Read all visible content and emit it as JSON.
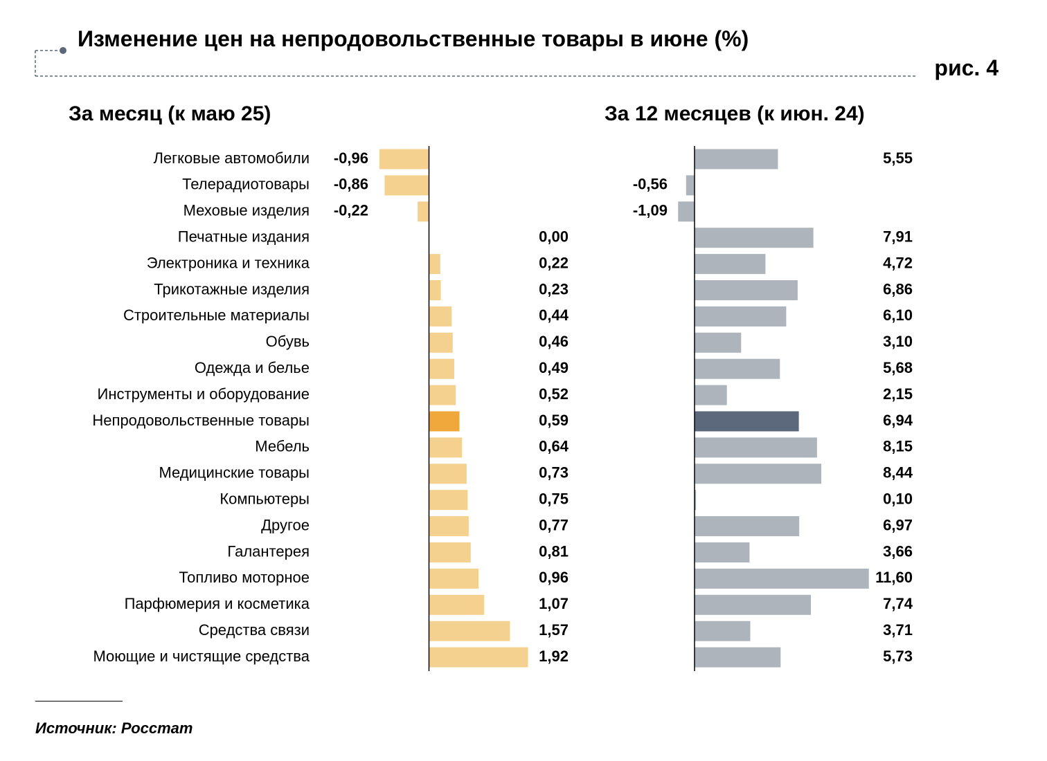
{
  "header": {
    "title": "Изменение цен на непродовольственные товары в июне (%)",
    "figure_number": "рис. 4"
  },
  "footer": {
    "source": "Источник: Росстат"
  },
  "colors": {
    "month_bar": "#f5d18f",
    "month_bar_highlight": "#f0a83c",
    "year_bar": "#adb4bc",
    "year_bar_highlight": "#5c687b",
    "axis": "#000000",
    "decoration": "#5c6878"
  },
  "chart_data": [
    {
      "type": "bar",
      "orientation": "horizontal",
      "title": "За месяц (к маю 25)",
      "categories": [
        "Легковые автомобили",
        "Телерадиотовары",
        "Меховые изделия",
        "Печатные издания",
        "Электроника и техника",
        "Трикотажные изделия",
        "Строительные материалы",
        "Обувь",
        "Одежда и белье",
        "Инструменты и оборудование",
        "Непродовольственные товары",
        "Мебель",
        "Медицинские товары",
        "Компьютеры",
        "Другое",
        "Галантерея",
        "Топливо моторное",
        "Парфюмерия и косметика",
        "Средства связи",
        "Моющие и чистящие средства"
      ],
      "values": [
        -0.96,
        -0.86,
        -0.22,
        0.0,
        0.22,
        0.23,
        0.44,
        0.46,
        0.49,
        0.52,
        0.59,
        0.64,
        0.73,
        0.75,
        0.77,
        0.81,
        0.96,
        1.07,
        1.57,
        1.92
      ],
      "value_labels": [
        "-0,96",
        "-0,86",
        "-0,22",
        "0,00",
        "0,22",
        "0,23",
        "0,44",
        "0,46",
        "0,49",
        "0,52",
        "0,59",
        "0,64",
        "0,73",
        "0,75",
        "0,77",
        "0,81",
        "0,96",
        "1,07",
        "1,57",
        "1,92"
      ],
      "highlight_category": "Непродовольственные товары",
      "xlim": [
        -0.96,
        1.92
      ],
      "grid": false,
      "legend": "none"
    },
    {
      "type": "bar",
      "orientation": "horizontal",
      "title": "За 12 месяцев (к июн. 24)",
      "categories": [
        "Легковые автомобили",
        "Телерадиотовары",
        "Меховые изделия",
        "Печатные издания",
        "Электроника и техника",
        "Трикотажные изделия",
        "Строительные материалы",
        "Обувь",
        "Одежда и белье",
        "Инструменты и оборудование",
        "Непродовольственные товары",
        "Мебель",
        "Медицинские товары",
        "Компьютеры",
        "Другое",
        "Галантерея",
        "Топливо моторное",
        "Парфюмерия и косметика",
        "Средства связи",
        "Моющие и чистящие средства"
      ],
      "values": [
        5.55,
        -0.56,
        -1.09,
        7.91,
        4.72,
        6.86,
        6.1,
        3.1,
        5.68,
        2.15,
        6.94,
        8.15,
        8.44,
        0.1,
        6.97,
        3.66,
        11.6,
        7.74,
        3.71,
        5.73
      ],
      "value_labels": [
        "5,55",
        "-0,56",
        "-1,09",
        "7,91",
        "4,72",
        "6,86",
        "6,10",
        "3,10",
        "5,68",
        "2,15",
        "6,94",
        "8,15",
        "8,44",
        "0,10",
        "6,97",
        "3,66",
        "11,60",
        "7,74",
        "3,71",
        "5,73"
      ],
      "highlight_category": "Непродовольственные товары",
      "xlim": [
        -1.09,
        11.6
      ],
      "grid": false,
      "legend": "none"
    }
  ]
}
